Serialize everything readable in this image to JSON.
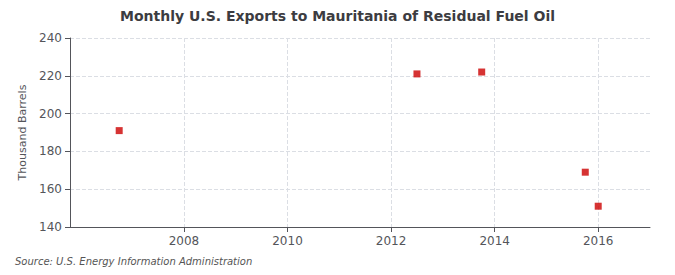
{
  "chart_data": {
    "type": "scatter",
    "title": "Monthly U.S. Exports to Mauritania of Residual Fuel Oil",
    "ylabel": "Thousand Barrels",
    "annotation": "Source: U.S. Energy Information Administration",
    "x": [
      2006.75,
      2012.5,
      2013.75,
      2015.75,
      2016.0
    ],
    "values": [
      191,
      221,
      222,
      169,
      151
    ],
    "color": "#cc0000",
    "marker": "square",
    "xlim": [
      2005.8,
      2017.0
    ],
    "xticks": [
      2008,
      2010,
      2012,
      2014,
      2016
    ],
    "ylim": [
      140,
      240
    ],
    "yticks": [
      140,
      160,
      180,
      200,
      220,
      240
    ],
    "grid": true
  }
}
